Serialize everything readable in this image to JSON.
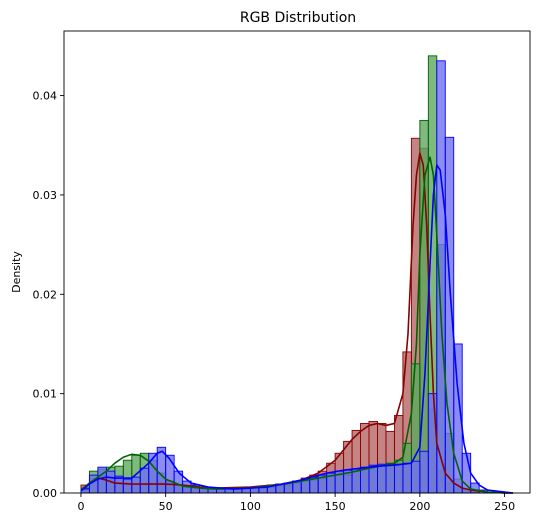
{
  "chart_data": {
    "type": "histogram",
    "title": "RGB Distribution",
    "xlabel": "",
    "ylabel": "Density",
    "xlim": [
      -10,
      265
    ],
    "ylim": [
      0,
      0.0465
    ],
    "x_ticks": [
      0,
      50,
      100,
      150,
      200,
      250
    ],
    "x_tick_labels": [
      "0",
      "50",
      "100",
      "150",
      "200",
      "250"
    ],
    "y_ticks": [
      0.0,
      0.01,
      0.02,
      0.03,
      0.04
    ],
    "y_tick_labels": [
      "0.00",
      "0.01",
      "0.02",
      "0.03",
      "0.04"
    ],
    "grid": false,
    "bins": [
      0,
      5,
      10,
      15,
      20,
      25,
      30,
      35,
      40,
      45,
      50,
      55,
      60,
      65,
      70,
      75,
      80,
      85,
      90,
      95,
      100,
      105,
      110,
      115,
      120,
      125,
      130,
      135,
      140,
      145,
      150,
      155,
      160,
      165,
      170,
      175,
      180,
      185,
      190,
      195,
      200,
      205,
      210,
      215,
      220,
      225,
      230,
      235,
      240,
      245,
      250,
      255
    ],
    "series": [
      {
        "color": "#8b0000",
        "fill": "#b56565",
        "hist": [
          0.0008,
          0.0014,
          0.0018,
          0.0013,
          0.001,
          0.0009,
          0.0009,
          0.0009,
          0.001,
          0.001,
          0.0009,
          0.0008,
          0.0007,
          0.0006,
          0.0005,
          0.0005,
          0.0005,
          0.0005,
          0.0005,
          0.0005,
          0.0006,
          0.0007,
          0.0008,
          0.0009,
          0.001,
          0.0012,
          0.0015,
          0.0018,
          0.0022,
          0.003,
          0.004,
          0.0052,
          0.0063,
          0.007,
          0.0072,
          0.007,
          0.0062,
          0.0078,
          0.0142,
          0.0357,
          0.0347,
          0.0085,
          0.0023,
          0.001,
          0.0005,
          0.0002,
          0.0001,
          0,
          0,
          0,
          0
        ],
        "kde_x": [
          0,
          5,
          10,
          15,
          20,
          30,
          40,
          50,
          60,
          70,
          80,
          100,
          120,
          130,
          140,
          150,
          160,
          165,
          170,
          175,
          180,
          185,
          190,
          193,
          196,
          198,
          200,
          202,
          204,
          206,
          208,
          210,
          215,
          220,
          225,
          230,
          240,
          250,
          255
        ],
        "kde_y": [
          0.0002,
          0.001,
          0.0015,
          0.0013,
          0.001,
          0.0009,
          0.0009,
          0.0009,
          0.0008,
          0.0006,
          0.0005,
          0.0006,
          0.0009,
          0.0013,
          0.002,
          0.0033,
          0.0054,
          0.0062,
          0.0068,
          0.007,
          0.0068,
          0.007,
          0.01,
          0.016,
          0.027,
          0.032,
          0.0342,
          0.033,
          0.027,
          0.018,
          0.01,
          0.005,
          0.002,
          0.001,
          0.0005,
          0.0003,
          0.0001,
          0,
          0
        ]
      },
      {
        "color": "#006400",
        "fill": "#5fa85f",
        "hist": [
          0.0005,
          0.0022,
          0.0024,
          0.0026,
          0.0027,
          0.0033,
          0.0038,
          0.004,
          0.0033,
          0.002,
          0.0012,
          0.0008,
          0.0006,
          0.0005,
          0.0005,
          0.0004,
          0.0004,
          0.0004,
          0.0004,
          0.0004,
          0.0005,
          0.0005,
          0.0006,
          0.0007,
          0.0008,
          0.001,
          0.0012,
          0.0013,
          0.0015,
          0.0017,
          0.0018,
          0.0018,
          0.0022,
          0.0025,
          0.0027,
          0.0028,
          0.003,
          0.0033,
          0.005,
          0.013,
          0.0375,
          0.044,
          0.025,
          0.006,
          0.0014,
          0.0004,
          0.0001,
          0,
          0,
          0,
          0
        ],
        "kde_x": [
          0,
          5,
          10,
          15,
          20,
          25,
          30,
          35,
          40,
          45,
          50,
          60,
          70,
          80,
          100,
          120,
          140,
          150,
          160,
          170,
          180,
          185,
          190,
          195,
          198,
          200,
          203,
          206,
          208,
          210,
          213,
          216,
          220,
          225,
          230,
          240,
          250,
          255
        ],
        "kde_y": [
          0.0003,
          0.001,
          0.0016,
          0.0022,
          0.003,
          0.0036,
          0.0039,
          0.0038,
          0.0032,
          0.0022,
          0.0014,
          0.0007,
          0.0005,
          0.0004,
          0.0005,
          0.0009,
          0.0015,
          0.0018,
          0.0021,
          0.0025,
          0.0028,
          0.003,
          0.0036,
          0.008,
          0.015,
          0.024,
          0.032,
          0.0338,
          0.032,
          0.026,
          0.016,
          0.009,
          0.004,
          0.0012,
          0.0004,
          0.0001,
          0,
          0
        ]
      },
      {
        "color": "#0000ff",
        "fill": "#6f6ff0",
        "hist": [
          0.0004,
          0.0018,
          0.0026,
          0.0022,
          0.0017,
          0.0014,
          0.0016,
          0.0025,
          0.004,
          0.0046,
          0.0038,
          0.0022,
          0.0012,
          0.0008,
          0.0006,
          0.0005,
          0.0005,
          0.0005,
          0.0005,
          0.0005,
          0.0006,
          0.0007,
          0.0008,
          0.0009,
          0.001,
          0.0012,
          0.0014,
          0.0016,
          0.0018,
          0.002,
          0.0022,
          0.0023,
          0.0024,
          0.0026,
          0.0028,
          0.0029,
          0.0029,
          0.0029,
          0.003,
          0.0032,
          0.0042,
          0.01,
          0.0435,
          0.0358,
          0.015,
          0.004,
          0.001,
          0.0003,
          0.0001,
          0,
          0
        ],
        "kde_x": [
          0,
          5,
          10,
          15,
          20,
          30,
          40,
          45,
          48,
          52,
          58,
          65,
          75,
          90,
          110,
          130,
          145,
          155,
          165,
          175,
          185,
          195,
          200,
          203,
          206,
          208,
          210,
          212,
          215,
          218,
          222,
          226,
          230,
          235,
          240,
          250,
          255
        ],
        "kde_y": [
          0.0002,
          0.0009,
          0.0014,
          0.0016,
          0.0015,
          0.0015,
          0.003,
          0.004,
          0.0042,
          0.0035,
          0.002,
          0.001,
          0.0006,
          0.0004,
          0.0006,
          0.0013,
          0.002,
          0.0023,
          0.0025,
          0.0027,
          0.0028,
          0.003,
          0.0046,
          0.012,
          0.023,
          0.03,
          0.033,
          0.0325,
          0.028,
          0.02,
          0.011,
          0.005,
          0.002,
          0.0008,
          0.0003,
          0.0001,
          0
        ]
      }
    ]
  }
}
